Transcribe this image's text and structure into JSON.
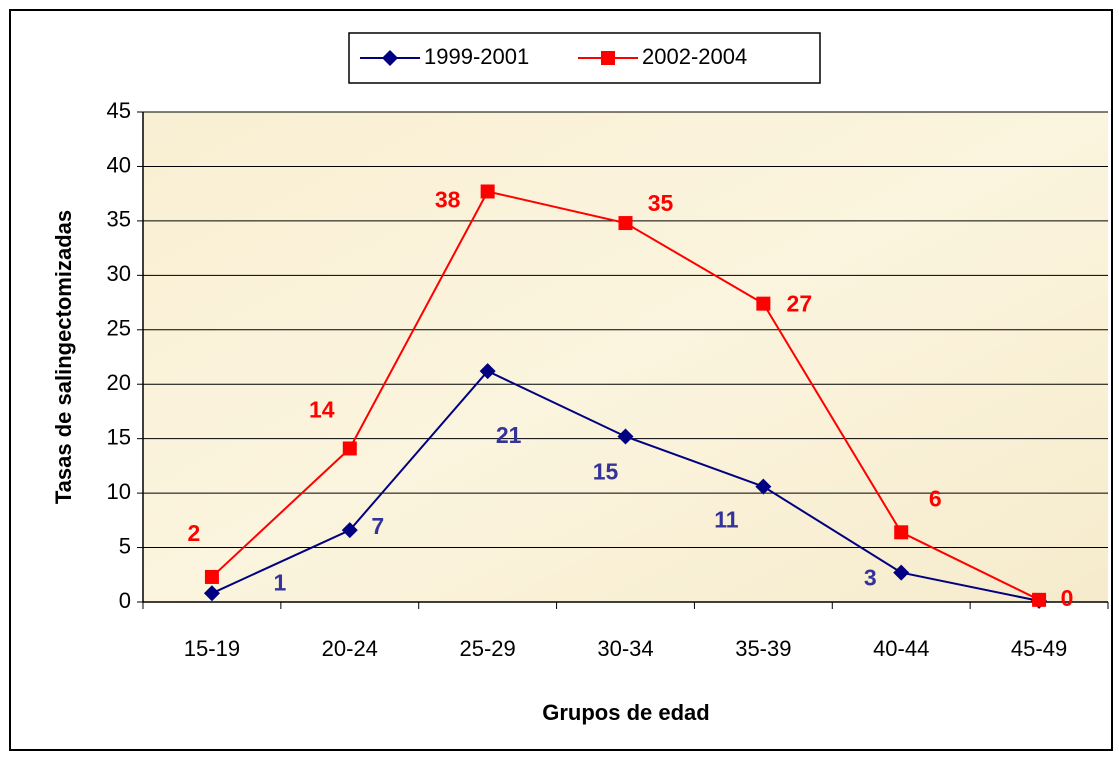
{
  "chart_data": {
    "type": "line",
    "categories": [
      "15-19",
      "20-24",
      "25-29",
      "30-34",
      "35-39",
      "40-44",
      "45-49"
    ],
    "series": [
      {
        "name": "1999-2001",
        "color": "#000080",
        "marker": "diamond",
        "label_color": "#333399",
        "values": [
          0.8,
          6.6,
          21.2,
          15.2,
          10.6,
          2.7,
          0.1
        ],
        "value_labels": [
          "1",
          "7",
          "21",
          "15",
          "11",
          "3",
          null
        ]
      },
      {
        "name": "2002-2004",
        "color": "#ff0000",
        "marker": "square",
        "label_color": "#ff0000",
        "values": [
          2.3,
          14.1,
          37.7,
          34.8,
          27.4,
          6.4,
          0.2
        ],
        "value_labels": [
          "2",
          "14",
          "38",
          "35",
          "27",
          "6",
          "0"
        ]
      }
    ],
    "ylim": [
      0,
      45
    ],
    "yticks": [
      0,
      5,
      10,
      15,
      20,
      25,
      30,
      35,
      40,
      45
    ],
    "grid": true,
    "y_label": "Tasas de salingectomizadas",
    "x_label": "Grupos de edad",
    "legend": "top"
  }
}
